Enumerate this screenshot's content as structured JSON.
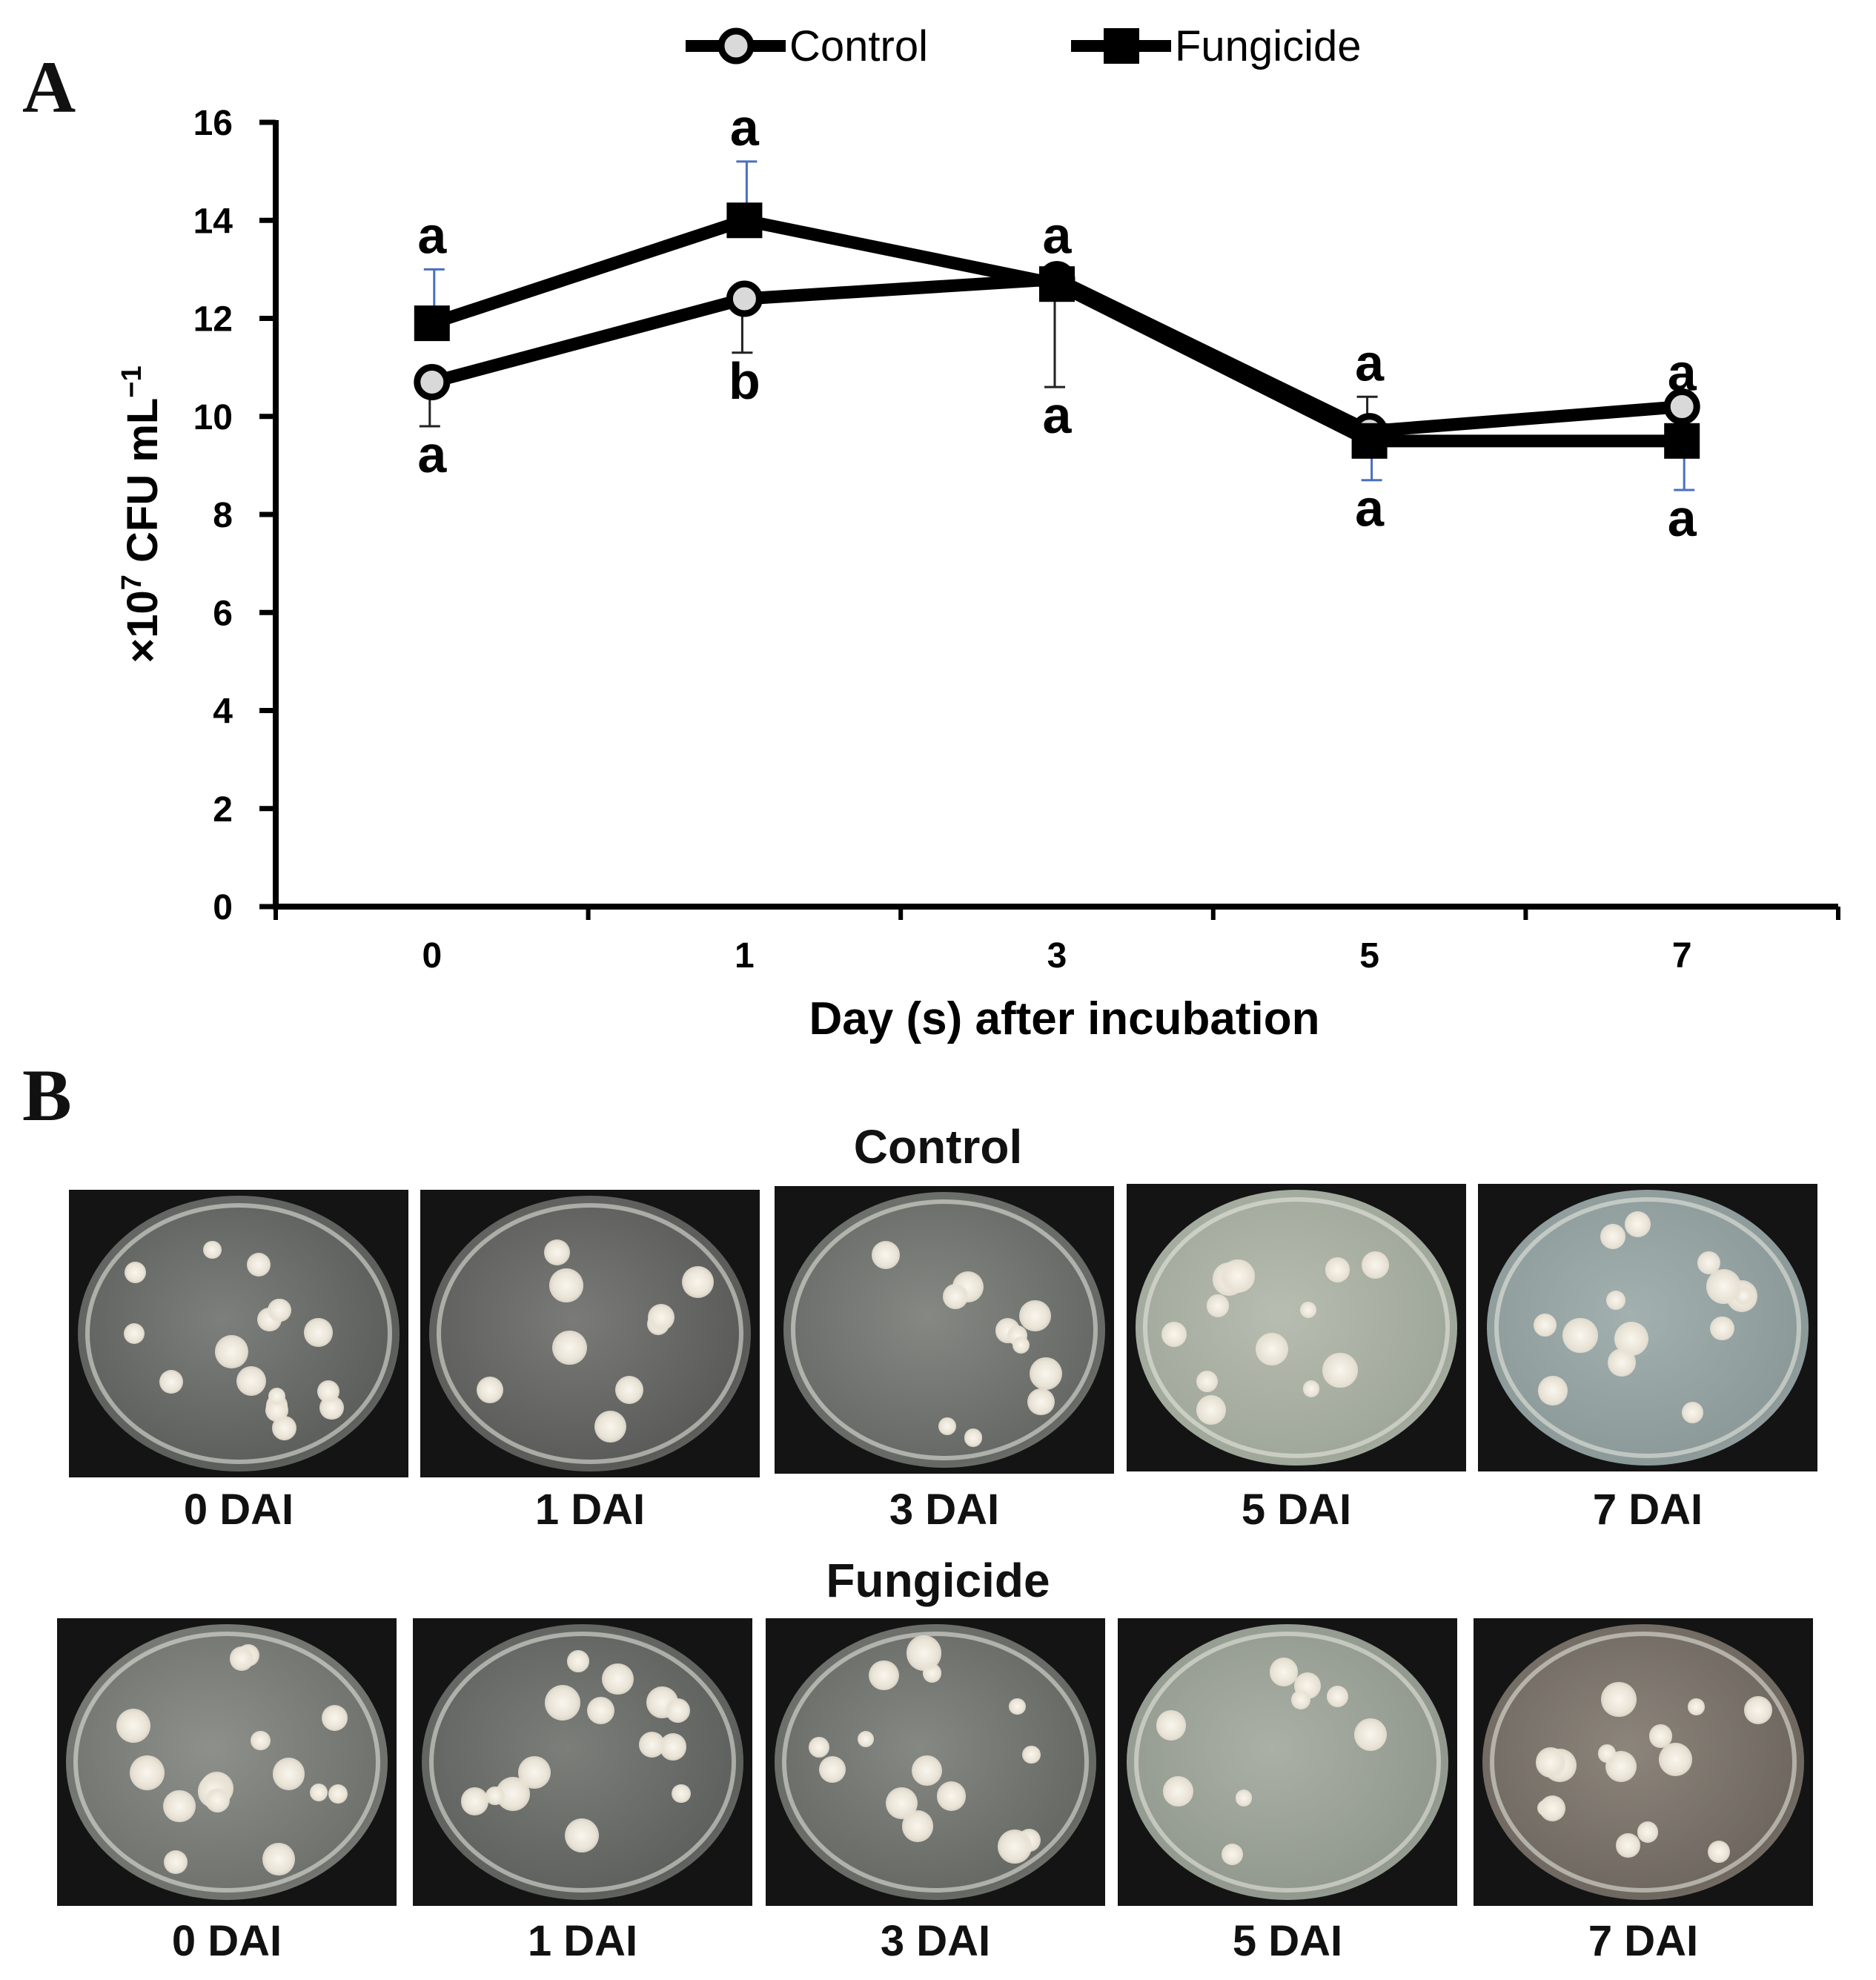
{
  "panel_labels": {
    "a": "A",
    "b": "B"
  },
  "chart_data": {
    "type": "line",
    "xlabel": "Day (s) after incubation",
    "ylabel_prefix": "×10",
    "ylabel_exp": "7",
    "ylabel_suffix": " CFU mL",
    "ylabel_unit_exp": "−1",
    "categories": [
      "0",
      "1",
      "3",
      "5",
      "7"
    ],
    "ylim": [
      0,
      16
    ],
    "yticks": [
      "0",
      "2",
      "4",
      "6",
      "8",
      "10",
      "12",
      "14",
      "16"
    ],
    "legend_position": "top-center",
    "series": [
      {
        "name": "Control",
        "marker": "circle",
        "values": [
          10.7,
          12.4,
          12.8,
          9.7,
          10.2
        ],
        "errors": [
          0.9,
          1.1,
          2.2,
          0.7,
          0.0
        ],
        "letters": [
          "a",
          "b",
          "a",
          "a",
          "a"
        ],
        "letter_side": [
          "below",
          "below",
          "below",
          "above",
          "above"
        ]
      },
      {
        "name": "Fungicide",
        "marker": "square",
        "values": [
          11.9,
          14.0,
          12.7,
          9.5,
          9.5
        ],
        "errors": [
          1.1,
          1.2,
          0.3,
          0.8,
          1.0
        ],
        "letters": [
          "a",
          "a",
          "a",
          "a",
          "a"
        ],
        "letter_side": [
          "above",
          "above",
          "above",
          "below",
          "below"
        ]
      }
    ],
    "colors": {
      "line": "#000000",
      "control_fill": "#d9d9d9",
      "error_bar": "#4a6fc0"
    }
  },
  "photos": {
    "control_title": "Control",
    "fungicide_title": "Fungicide",
    "control_labels": [
      "0 DAI",
      "1 DAI",
      "3 DAI",
      "5 DAI",
      "7 DAI"
    ],
    "fungicide_labels": [
      "0 DAI",
      "1 DAI",
      "3 DAI",
      "5 DAI",
      "7 DAI"
    ]
  }
}
